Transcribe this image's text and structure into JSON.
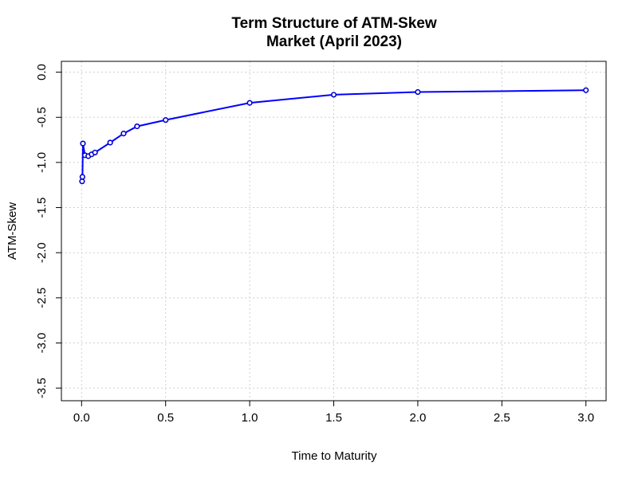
{
  "chart_data": {
    "type": "line",
    "title_line1": "Term Structure of ATM-Skew",
    "title_line2": "Market (April 2023)",
    "xlabel": "Time to Maturity",
    "ylabel": "ATM-Skew",
    "xlim": [
      -0.12,
      3.12
    ],
    "ylim": [
      -3.64,
      0.12
    ],
    "x_ticks": [
      0.0,
      0.5,
      1.0,
      1.5,
      2.0,
      2.5,
      3.0
    ],
    "x_tick_labels": [
      "0.0",
      "0.5",
      "1.0",
      "1.5",
      "2.0",
      "2.5",
      "3.0"
    ],
    "y_ticks": [
      0.0,
      -0.5,
      -1.0,
      -1.5,
      -2.0,
      -2.5,
      -3.0,
      -3.5
    ],
    "y_tick_labels": [
      "0.0",
      "-0.5",
      "-1.0",
      "-1.5",
      "-2.0",
      "-2.5",
      "-3.0",
      "-3.5"
    ],
    "grid": true,
    "line_color": "#0000ff",
    "marker_color": "#0000cc",
    "series": [
      {
        "x": [
          0.003,
          0.005,
          0.008,
          0.02,
          0.04,
          0.06,
          0.08,
          0.17,
          0.25,
          0.33,
          0.5,
          1.0,
          1.5,
          2.0,
          3.0
        ],
        "y": [
          -1.21,
          -1.16,
          -0.79,
          -0.92,
          -0.93,
          -0.91,
          -0.89,
          -0.78,
          -0.68,
          -0.6,
          -0.53,
          -0.34,
          -0.25,
          -0.22,
          -0.2
        ]
      }
    ]
  }
}
